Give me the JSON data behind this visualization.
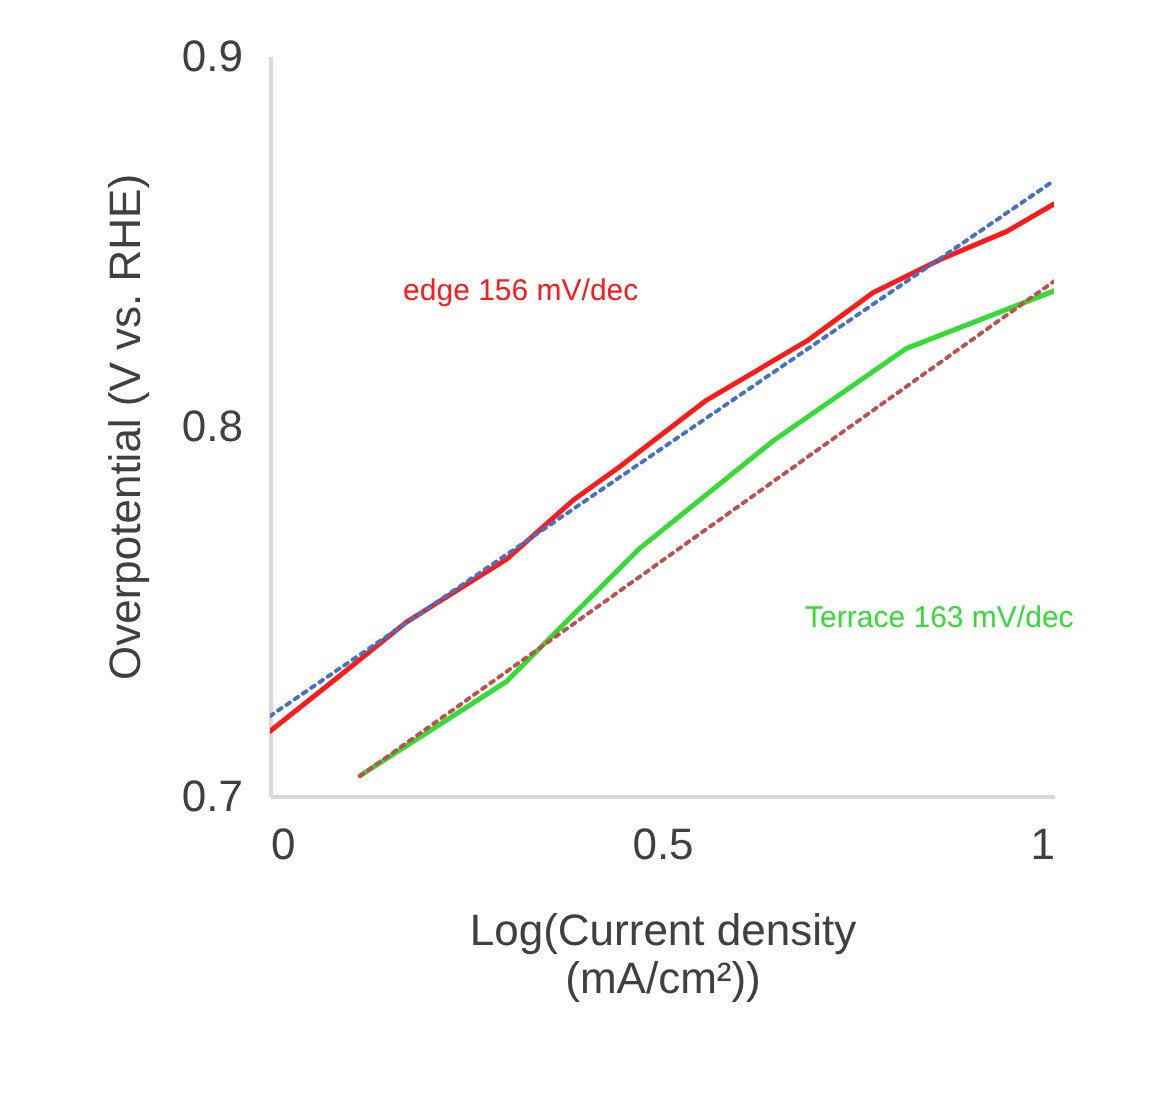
{
  "chart_data": {
    "type": "line",
    "xlabel": "Log(Current density (mA/cm²))",
    "ylabel": "Overpotential (V vs. RHE)",
    "xlim": [
      0,
      1
    ],
    "xticks": [
      0,
      0.5,
      1
    ],
    "ylim": [
      0.7,
      0.9
    ],
    "yticks": [
      0.7,
      0.8,
      0.9
    ],
    "grid": false,
    "series": [
      {
        "name": "edge 156 mV/dec",
        "color": "#ff1a1a",
        "x": [
          0,
          0.089,
          0.174,
          0.302,
          0.387,
          0.446,
          0.557,
          0.685,
          0.769,
          0.855,
          0.94,
          1
        ],
        "values": [
          0.7175,
          0.7325,
          0.747,
          0.764,
          0.78,
          0.789,
          0.807,
          0.823,
          0.836,
          0.845,
          0.8526,
          0.86
        ]
      },
      {
        "name": "Terrace 163 mV/dec",
        "color": "#33dd33",
        "x": [
          0.115,
          0.302,
          0.472,
          0.642,
          0.812,
          1
        ],
        "values": [
          0.7055,
          0.731,
          0.767,
          0.796,
          0.821,
          0.8365
        ]
      },
      {
        "color": "#4472c4",
        "line_style": "dotted",
        "x": [
          0,
          1
        ],
        "values": [
          0.7216,
          0.8663
        ]
      },
      {
        "color": "#c0504d",
        "line_style": "dotted",
        "x": [
          0.115,
          1
        ],
        "values": [
          0.7054,
          0.8391
        ]
      }
    ]
  }
}
